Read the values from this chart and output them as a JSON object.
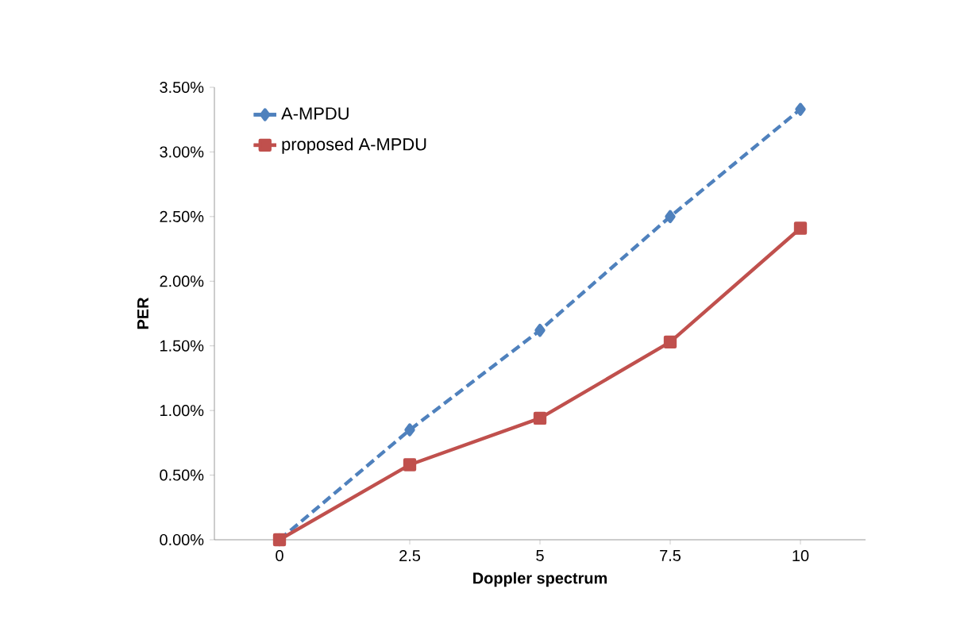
{
  "chart_data": {
    "type": "line",
    "xlabel": "Doppler spectrum",
    "ylabel": "PER",
    "categories": [
      "0",
      "2.5",
      "5",
      "7.5",
      "10"
    ],
    "series": [
      {
        "name": "A-MPDU",
        "color": "#4f81bd",
        "values": [
          0,
          0.85,
          1.62,
          2.5,
          3.33
        ],
        "marker": "diamond",
        "line_style": "dashed"
      },
      {
        "name": "proposed A-MPDU",
        "color": "#c0504d",
        "values": [
          0,
          0.58,
          0.94,
          1.53,
          2.41
        ],
        "marker": "square",
        "line_style": "solid"
      }
    ],
    "ylim": [
      0,
      3.5
    ],
    "yticks": [
      {
        "value": 0,
        "label": "0.00%"
      },
      {
        "value": 0.5,
        "label": "0.50%"
      },
      {
        "value": 1,
        "label": "1.00%"
      },
      {
        "value": 1.5,
        "label": "1.50%"
      },
      {
        "value": 2,
        "label": "2.00%"
      },
      {
        "value": 2.5,
        "label": "2.50%"
      },
      {
        "value": 3,
        "label": "3.00%"
      },
      {
        "value": 3.5,
        "label": "3.50%"
      }
    ],
    "grid": false,
    "legend": "top left"
  }
}
